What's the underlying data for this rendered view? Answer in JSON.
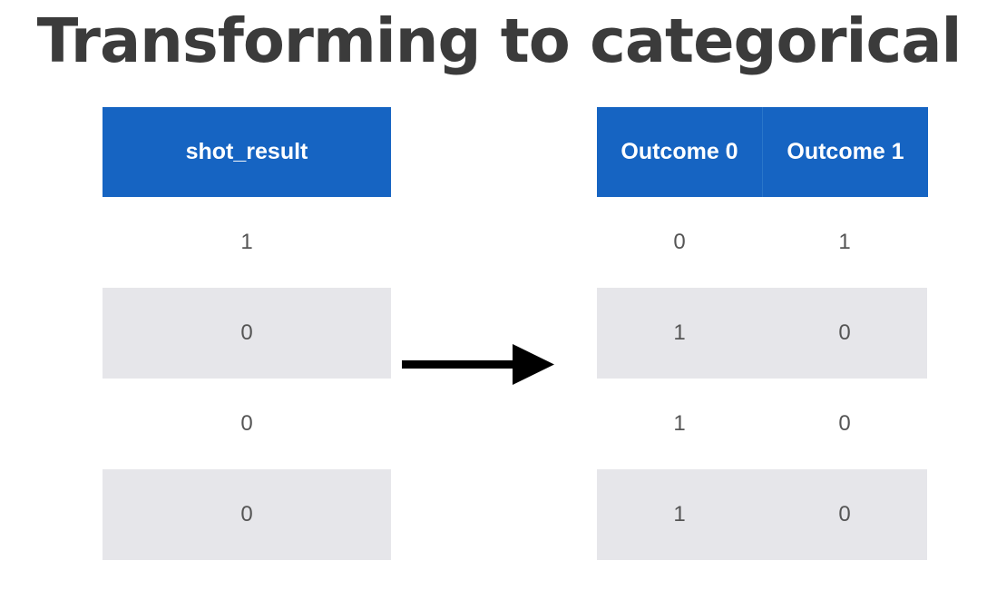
{
  "title": "Transforming to categorical",
  "left_table": {
    "header": "shot_result",
    "rows": [
      "1",
      "0",
      "0",
      "0"
    ]
  },
  "right_table": {
    "headers": [
      "Outcome 0",
      "Outcome 1"
    ],
    "rows": [
      [
        "0",
        "1"
      ],
      [
        "1",
        "0"
      ],
      [
        "1",
        "0"
      ],
      [
        "1",
        "0"
      ]
    ]
  },
  "arrow_icon": "right-arrow-icon",
  "colors": {
    "header_bg": "#1664c2",
    "shade_row_bg": "#e6e6ea",
    "title_text": "#3b3b3b"
  }
}
